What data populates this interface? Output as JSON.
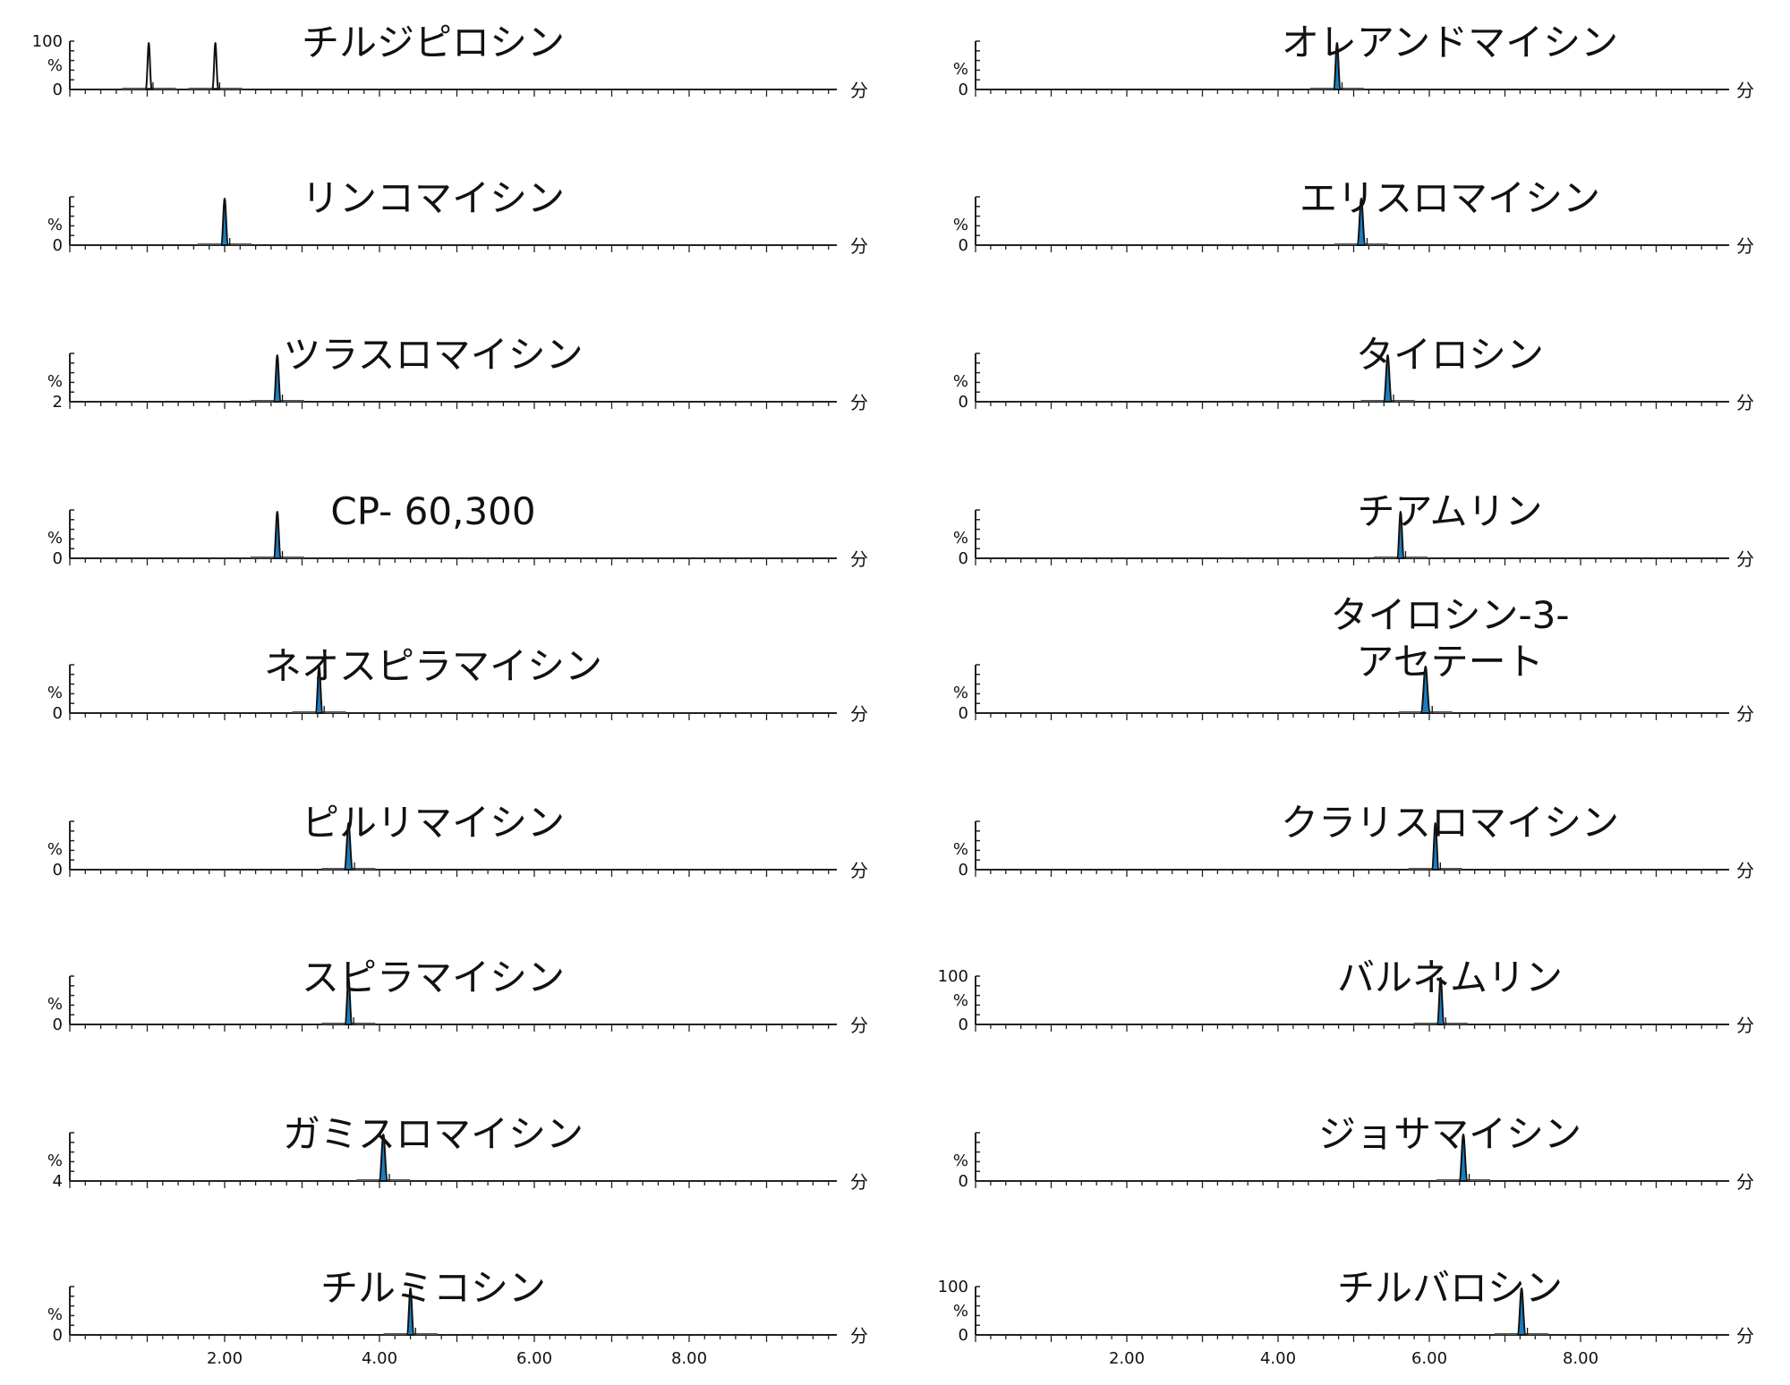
{
  "chart_data": {
    "type": "line",
    "x_tick_labels": [
      "2.00",
      "4.00",
      "6.00",
      "8.00"
    ],
    "x_ticks": [
      2,
      4,
      6,
      8
    ],
    "xlim": [
      0,
      10
    ],
    "x_unit": "分",
    "y_unit": "%",
    "panels": [
      {
        "title": "チルジピロシン",
        "ylabels": [
          "100",
          "%",
          "0"
        ],
        "peaks": [
          1.02,
          1.88
        ],
        "hw": 0.025,
        "fill": false
      },
      {
        "title": "リンコマイシン",
        "ylabels": [
          "%",
          "0"
        ],
        "peaks": [
          2.0
        ],
        "hw": 0.03,
        "fill": true
      },
      {
        "title": "ツラスロマイシン",
        "ylabels": [
          "%",
          "2"
        ],
        "peaks": [
          2.68
        ],
        "hw": 0.03,
        "fill": true
      },
      {
        "title": "CP- 60,300",
        "ylabels": [
          "%",
          "0"
        ],
        "peaks": [
          2.68
        ],
        "hw": 0.03,
        "fill": true
      },
      {
        "title": "ネオスピラマイシン",
        "ylabels": [
          "%",
          "0"
        ],
        "peaks": [
          3.22
        ],
        "hw": 0.03,
        "fill": true
      },
      {
        "title": "ピルリマイシン",
        "ylabels": [
          "%",
          "0"
        ],
        "peaks": [
          3.6
        ],
        "hw": 0.035,
        "fill": true
      },
      {
        "title": "スピラマイシン",
        "ylabels": [
          "%",
          "0"
        ],
        "peaks": [
          3.6
        ],
        "hw": 0.03,
        "fill": true
      },
      {
        "title": "ガミスロマイシン",
        "ylabels": [
          "%",
          "4"
        ],
        "peaks": [
          4.05
        ],
        "hw": 0.035,
        "fill": true
      },
      {
        "title": "チルミコシン",
        "ylabels": [
          "%",
          "0"
        ],
        "peaks": [
          4.4
        ],
        "hw": 0.03,
        "fill": true
      },
      {
        "title": "オレアンドマイシン",
        "ylabels": [
          "%",
          "0"
        ],
        "peaks": [
          4.78
        ],
        "hw": 0.03,
        "fill": true
      },
      {
        "title": "エリスロマイシン",
        "ylabels": [
          "%",
          "0"
        ],
        "peaks": [
          5.1
        ],
        "hw": 0.035,
        "fill": true
      },
      {
        "title": "タイロシン",
        "ylabels": [
          "%",
          "0"
        ],
        "peaks": [
          5.45
        ],
        "hw": 0.035,
        "fill": true
      },
      {
        "title": "チアムリン",
        "ylabels": [
          "%",
          "0"
        ],
        "peaks": [
          5.62
        ],
        "hw": 0.03,
        "fill": true
      },
      {
        "title": "タイロシン-3-\nアセテート",
        "ylabels": [
          "%",
          "0"
        ],
        "peaks": [
          5.95
        ],
        "hw": 0.04,
        "fill": true
      },
      {
        "title": "クラリスロマイシン",
        "ylabels": [
          "%",
          "0"
        ],
        "peaks": [
          6.08
        ],
        "hw": 0.03,
        "fill": true
      },
      {
        "title": "バルネムリン",
        "ylabels": [
          "100",
          "%",
          "0"
        ],
        "peaks": [
          6.15
        ],
        "hw": 0.03,
        "fill": true
      },
      {
        "title": "ジョサマイシン",
        "ylabels": [
          "%",
          "0"
        ],
        "peaks": [
          6.45
        ],
        "hw": 0.035,
        "fill": true
      },
      {
        "title": "チルバロシン",
        "ylabels": [
          "100",
          "%",
          "0"
        ],
        "peaks": [
          7.22
        ],
        "hw": 0.035,
        "fill": true
      }
    ]
  }
}
